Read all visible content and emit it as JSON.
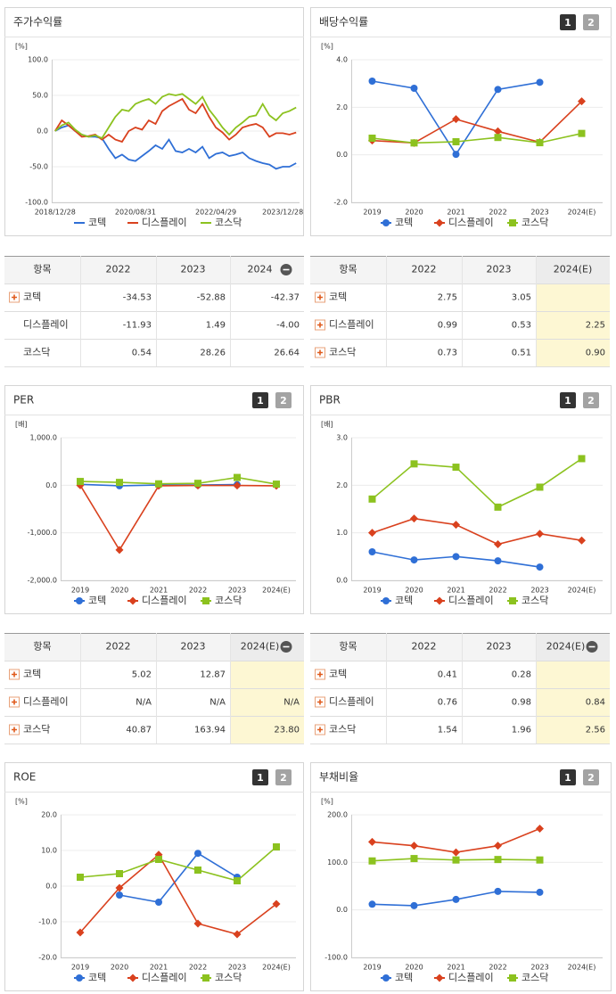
{
  "buttons": [
    "1",
    "2"
  ],
  "chart_data": [
    {
      "type": "line",
      "title": "주가수익률",
      "y_unit": "[%]",
      "markers": false,
      "toggle": false,
      "categories": [
        "2018/12/28",
        null,
        null,
        null,
        null,
        null,
        null,
        null,
        null,
        null,
        null,
        null,
        "2020/08/31",
        null,
        null,
        null,
        null,
        null,
        null,
        null,
        null,
        null,
        null,
        null,
        "2022/04/29",
        null,
        null,
        null,
        null,
        null,
        null,
        null,
        null,
        null,
        null,
        null,
        "2023/12/28"
      ],
      "series": [
        {
          "name": "코텍",
          "color": "#2f6fd6",
          "marker": "circle",
          "values": [
            0,
            5,
            8,
            0,
            -5,
            -8,
            -8,
            -10,
            -25,
            -38,
            -33,
            -40,
            -42,
            -35,
            -28,
            -20,
            -25,
            -12,
            -28,
            -30,
            -25,
            -30,
            -22,
            -38,
            -32,
            -30,
            -35,
            -33,
            -30,
            -38,
            -42,
            -45,
            -47,
            -53,
            -50,
            -50,
            -45
          ]
        },
        {
          "name": "디스플레이",
          "color": "#d9411e",
          "marker": "diamond",
          "values": [
            0,
            15,
            8,
            0,
            -8,
            -7,
            -5,
            -12,
            -5,
            -12,
            -15,
            0,
            5,
            2,
            15,
            10,
            28,
            35,
            40,
            45,
            30,
            25,
            38,
            20,
            5,
            -2,
            -12,
            -5,
            5,
            8,
            10,
            5,
            -8,
            -3,
            -3,
            -5,
            -2
          ]
        },
        {
          "name": "코스닥",
          "color": "#8cc21f",
          "marker": "square",
          "values": [
            0,
            8,
            12,
            2,
            -5,
            -8,
            -6,
            -10,
            5,
            20,
            30,
            28,
            38,
            42,
            45,
            38,
            48,
            52,
            50,
            52,
            45,
            38,
            48,
            30,
            18,
            5,
            -5,
            5,
            12,
            20,
            22,
            38,
            22,
            15,
            25,
            28,
            33
          ]
        }
      ],
      "ylim": [
        -100,
        100
      ],
      "yticks": [
        {
          "value": 100,
          "label": "100.0"
        },
        {
          "value": 50,
          "label": "50.0"
        },
        {
          "value": 0,
          "label": "0.0"
        },
        {
          "value": -50,
          "label": "-50.0"
        },
        {
          "value": -100,
          "label": "-100.0"
        }
      ]
    },
    {
      "type": "line",
      "title": "배당수익률",
      "y_unit": "[%]",
      "markers": true,
      "toggle": true,
      "categories": [
        "2019",
        "2020",
        "2021",
        "2022",
        "2023",
        "2024(E)"
      ],
      "series": [
        {
          "name": "코텍",
          "color": "#2f6fd6",
          "marker": "circle",
          "values": [
            3.1,
            2.8,
            0.02,
            2.75,
            3.05,
            null
          ]
        },
        {
          "name": "디스플레이",
          "color": "#d9411e",
          "marker": "diamond",
          "values": [
            0.6,
            0.5,
            1.5,
            0.99,
            0.53,
            2.25
          ]
        },
        {
          "name": "코스닥",
          "color": "#8cc21f",
          "marker": "square",
          "values": [
            0.7,
            0.5,
            0.55,
            0.73,
            0.51,
            0.9
          ]
        }
      ],
      "ylim": [
        -2,
        4
      ],
      "yticks": [
        {
          "value": 4,
          "label": "4.0"
        },
        {
          "value": 2,
          "label": "2.0"
        },
        {
          "value": 0,
          "label": "0.0"
        },
        {
          "value": -2,
          "label": "-2.0"
        }
      ]
    },
    {
      "type": "line",
      "title": "PER",
      "y_unit": "[배]",
      "markers": true,
      "toggle": true,
      "categories": [
        "2019",
        "2020",
        "2021",
        "2022",
        "2023",
        "2024(E)"
      ],
      "series": [
        {
          "name": "코텍",
          "color": "#2f6fd6",
          "marker": "circle",
          "values": [
            20,
            -10,
            5,
            5.02,
            12.87,
            null
          ]
        },
        {
          "name": "디스플레이",
          "color": "#d9411e",
          "marker": "diamond",
          "values": [
            0,
            -1360,
            -10,
            -5,
            -5,
            -10
          ]
        },
        {
          "name": "코스닥",
          "color": "#8cc21f",
          "marker": "square",
          "values": [
            80,
            60,
            30,
            40.87,
            163.94,
            23.8
          ]
        }
      ],
      "ylim": [
        -2000,
        1000
      ],
      "yticks": [
        {
          "value": 1000,
          "label": "1,000.0"
        },
        {
          "value": 0,
          "label": "0.0"
        },
        {
          "value": -1000,
          "label": "-1,000.0"
        },
        {
          "value": -2000,
          "label": "-2,000.0"
        }
      ]
    },
    {
      "type": "line",
      "title": "PBR",
      "y_unit": "[배]",
      "markers": true,
      "toggle": true,
      "categories": [
        "2019",
        "2020",
        "2021",
        "2022",
        "2023",
        "2024(E)"
      ],
      "series": [
        {
          "name": "코텍",
          "color": "#2f6fd6",
          "marker": "circle",
          "values": [
            0.6,
            0.43,
            0.5,
            0.41,
            0.28,
            null
          ]
        },
        {
          "name": "디스플레이",
          "color": "#d9411e",
          "marker": "diamond",
          "values": [
            1.0,
            1.3,
            1.17,
            0.76,
            0.98,
            0.84
          ]
        },
        {
          "name": "코스닥",
          "color": "#8cc21f",
          "marker": "square",
          "values": [
            1.71,
            2.45,
            2.38,
            1.54,
            1.96,
            2.56
          ]
        }
      ],
      "ylim": [
        0,
        3
      ],
      "yticks": [
        {
          "value": 3,
          "label": "3.0"
        },
        {
          "value": 2,
          "label": "2.0"
        },
        {
          "value": 1,
          "label": "1.0"
        },
        {
          "value": 0,
          "label": "0.0"
        }
      ]
    },
    {
      "type": "line",
      "title": "ROE",
      "y_unit": "[%]",
      "markers": true,
      "toggle": true,
      "categories": [
        "2019",
        "2020",
        "2021",
        "2022",
        "2023",
        "2024(E)"
      ],
      "series": [
        {
          "name": "코텍",
          "color": "#2f6fd6",
          "marker": "circle",
          "values": [
            null,
            -2.5,
            -4.5,
            9.2,
            2.5,
            null
          ]
        },
        {
          "name": "디스플레이",
          "color": "#d9411e",
          "marker": "diamond",
          "values": [
            -13,
            -0.5,
            8.8,
            -10.5,
            -13.5,
            -5
          ]
        },
        {
          "name": "코스닥",
          "color": "#8cc21f",
          "marker": "square",
          "values": [
            2.5,
            3.5,
            7.5,
            4.5,
            1.5,
            11
          ]
        }
      ],
      "ylim": [
        -20,
        20
      ],
      "yticks": [
        {
          "value": 20,
          "label": "20.0"
        },
        {
          "value": 10,
          "label": "10.0"
        },
        {
          "value": 0,
          "label": "0.0"
        },
        {
          "value": -10,
          "label": "-10.0"
        },
        {
          "value": -20,
          "label": "-20.0"
        }
      ]
    },
    {
      "type": "line",
      "title": "부채비율",
      "y_unit": "[%]",
      "markers": true,
      "toggle": true,
      "categories": [
        "2019",
        "2020",
        "2021",
        "2022",
        "2023",
        "2024(E)"
      ],
      "series": [
        {
          "name": "코텍",
          "color": "#2f6fd6",
          "marker": "circle",
          "values": [
            12,
            9,
            22,
            39,
            37,
            null
          ]
        },
        {
          "name": "디스플레이",
          "color": "#d9411e",
          "marker": "diamond",
          "values": [
            143,
            135,
            121,
            135,
            171,
            null
          ]
        },
        {
          "name": "코스닥",
          "color": "#8cc21f",
          "marker": "square",
          "values": [
            103,
            108,
            105,
            106,
            105,
            null
          ]
        }
      ],
      "ylim": [
        -100,
        200
      ],
      "yticks": [
        {
          "value": 200,
          "label": "200.0"
        },
        {
          "value": 100,
          "label": "100.0"
        },
        {
          "value": 0,
          "label": "0.0"
        },
        {
          "value": -100,
          "label": "-100.0"
        }
      ]
    }
  ],
  "tables": [
    {
      "header": [
        "항목",
        "2022",
        "2023",
        "2024"
      ],
      "collapse_icon": true,
      "highlight_last": false,
      "row_icons": [
        true,
        false,
        false
      ],
      "rows": [
        [
          "코텍",
          "-34.53",
          "-52.88",
          "-42.37"
        ],
        [
          "디스플레이",
          "-11.93",
          "1.49",
          "-4.00"
        ],
        [
          "코스닥",
          "0.54",
          "28.26",
          "26.64"
        ]
      ]
    },
    {
      "header": [
        "항목",
        "2022",
        "2023",
        "2024(E)"
      ],
      "collapse_icon": false,
      "highlight_last": true,
      "row_icons": [
        true,
        true,
        true
      ],
      "rows": [
        [
          "코텍",
          "2.75",
          "3.05",
          null
        ],
        [
          "디스플레이",
          "0.99",
          "0.53",
          "2.25"
        ],
        [
          "코스닥",
          "0.73",
          "0.51",
          "0.90"
        ]
      ]
    },
    {
      "header": [
        "항목",
        "2022",
        "2023",
        "2024(E)"
      ],
      "collapse_icon": true,
      "highlight_last": true,
      "row_icons": [
        true,
        true,
        true
      ],
      "rows": [
        [
          "코텍",
          "5.02",
          "12.87",
          null
        ],
        [
          "디스플레이",
          "N/A",
          "N/A",
          "N/A"
        ],
        [
          "코스닥",
          "40.87",
          "163.94",
          "23.80"
        ]
      ]
    },
    {
      "header": [
        "항목",
        "2022",
        "2023",
        "2024(E)"
      ],
      "collapse_icon": true,
      "highlight_last": true,
      "row_icons": [
        true,
        true,
        true
      ],
      "rows": [
        [
          "코텍",
          "0.41",
          "0.28",
          null
        ],
        [
          "디스플레이",
          "0.76",
          "0.98",
          "0.84"
        ],
        [
          "코스닥",
          "1.54",
          "1.96",
          "2.56"
        ]
      ]
    }
  ]
}
